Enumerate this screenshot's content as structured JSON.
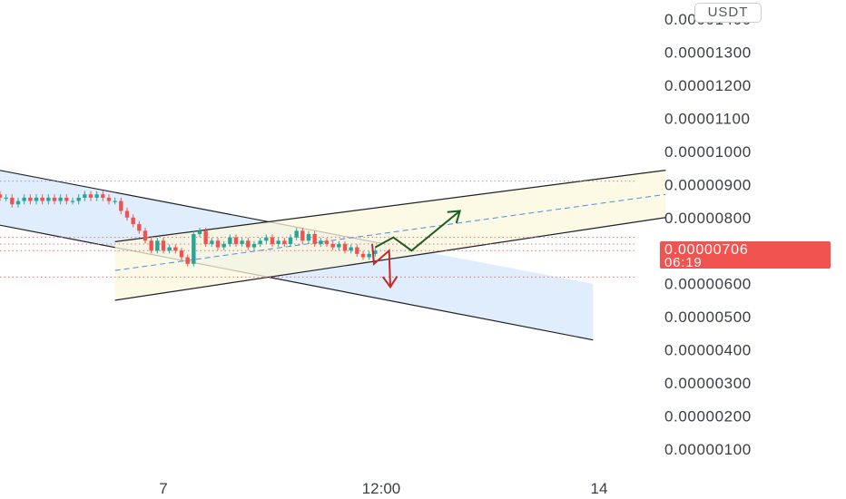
{
  "currency_badge": "USDT",
  "price_label": {
    "price": "0.00000706",
    "countdown": "06:19",
    "color": "#f05350"
  },
  "colors": {
    "up": "#26a69a",
    "down": "#ef5350",
    "channel_down_fill": "#dbeafb",
    "channel_up_fill": "#fbf7dc",
    "midline": "#4a90e2",
    "arrow_up": "#1b5e20",
    "arrow_down": "#c62828",
    "level_red": "#e57373",
    "level_grey": "#9e9e9e"
  },
  "chart_data": {
    "type": "candlestick",
    "title": "",
    "xlabel": "",
    "ylabel": "",
    "y_scale": "linear",
    "ylim": [
      1e-07,
      1.4e-05
    ],
    "y_ticks": [
      "0.00001400",
      "0.00001300",
      "0.00001200",
      "0.00001100",
      "0.00001000",
      "0.00000900",
      "0.00000800",
      "0.00000700",
      "0.00000600",
      "0.00000500",
      "0.00000400",
      "0.00000300",
      "0.00000200",
      "0.00000100"
    ],
    "y_tick_values": [
      1.4e-05,
      1.3e-05,
      1.2e-05,
      1.1e-05,
      1e-05,
      9e-06,
      8e-06,
      7e-06,
      6e-06,
      5e-06,
      4e-06,
      3e-06,
      2e-06,
      1e-06
    ],
    "hidden_y_ticks": [
      "0.00000700"
    ],
    "x_range_hours": [
      -42,
      83
    ],
    "x_ticks": [
      {
        "label": "7",
        "hours": 0
      },
      {
        "label": "12:00",
        "hours": 36
      },
      {
        "label": "14",
        "hours": 72
      }
    ],
    "last_price": 7.06e-06,
    "series": [
      {
        "name": "",
        "type": "candlestick",
        "hours": [
          -42,
          -41,
          -40,
          -39,
          -38,
          -37,
          -36,
          -35,
          -34,
          -33,
          -32,
          -31,
          -30,
          -29,
          -28,
          -27,
          -26,
          -25,
          -24,
          -23,
          -22,
          -21,
          -20,
          -19,
          -18,
          -17,
          -16,
          -15,
          -14,
          -13,
          -12,
          -11,
          -10,
          -9,
          -8,
          -7,
          -6,
          -5,
          -4,
          -3,
          -2,
          -1,
          0,
          1,
          2,
          3,
          4,
          5,
          6,
          7,
          8,
          9,
          10,
          11,
          12,
          13,
          14,
          15,
          16,
          17,
          18,
          19,
          20,
          21,
          22,
          23,
          24,
          25,
          26,
          27,
          28,
          29,
          30,
          31,
          32,
          33,
          34,
          35
        ],
        "close": [
          8.9e-06,
          8.8e-06,
          8.9e-06,
          8.8e-06,
          8.9e-06,
          9e-06,
          8.9e-06,
          9e-06,
          8.9e-06,
          9e-06,
          9e-06,
          8.9e-06,
          8.7e-06,
          8.6e-06,
          8.7e-06,
          8.6e-06,
          8.6e-06,
          8.4e-06,
          8.5e-06,
          8.6e-06,
          8.5e-06,
          8.6e-06,
          8.5e-06,
          8.6e-06,
          8.5e-06,
          8.6e-06,
          8.5e-06,
          8.5e-06,
          8.6e-06,
          8.7e-06,
          8.6e-06,
          8.7e-06,
          8.6e-06,
          8.5e-06,
          8.5e-06,
          8.2e-06,
          8e-06,
          7.8e-06,
          7.6e-06,
          7.3e-06,
          7e-06,
          7.3e-06,
          7e-06,
          7.1e-06,
          7e-06,
          6.8e-06,
          6.6e-06,
          7.5e-06,
          7.6e-06,
          7.2e-06,
          7.3e-06,
          7.1e-06,
          7.2e-06,
          7.4e-06,
          7.2e-06,
          7.3e-06,
          7.1e-06,
          7.2e-06,
          7.3e-06,
          7.4e-06,
          7.2e-06,
          7.3e-06,
          7.2e-06,
          7.4e-06,
          7.6e-06,
          7.3e-06,
          7.5e-06,
          7.2e-06,
          7.3e-06,
          7.2e-06,
          7.1e-06,
          7.2e-06,
          7e-06,
          7.1e-06,
          6.9e-06,
          6.8e-06,
          6.9e-06,
          7e-06
        ]
      }
    ],
    "drawings": [
      {
        "name": "",
        "type": "descending-channel",
        "upper": [
          [
            -42,
            9.95e-06
          ],
          [
            36,
            7.22e-06
          ]
        ],
        "lower": [
          [
            -42,
            8.3e-06
          ],
          [
            71,
            4.3e-06
          ]
        ]
      },
      {
        "name": "",
        "type": "ascending-channel",
        "upper": [
          [
            -8,
            7.27e-06
          ],
          [
            83,
            9.43e-06
          ]
        ],
        "lower": [
          [
            -8,
            5.5e-06
          ],
          [
            83,
            8e-06
          ]
        ],
        "midline": [
          [
            -8,
            6.4e-06
          ],
          [
            83,
            8.7e-06
          ]
        ]
      },
      {
        "name": "",
        "type": "path-arrow",
        "points": [
          [
            35,
            7.1e-06
          ],
          [
            38,
            7.4e-06
          ],
          [
            41,
            7e-06
          ],
          [
            49,
            8.2e-06
          ]
        ]
      },
      {
        "name": "",
        "type": "path-arrow",
        "points": [
          [
            34.5,
            7.2e-06
          ],
          [
            34.8,
            6.6e-06
          ],
          [
            37.3,
            7e-06
          ],
          [
            37.5,
            5.9e-06
          ]
        ]
      }
    ],
    "levels": [
      {
        "value": 9.1e-06
      },
      {
        "value": 7.4e-06
      },
      {
        "value": 7.2e-06
      },
      {
        "value": 7e-06
      },
      {
        "value": 6.2e-06
      }
    ],
    "grid": false,
    "legend": "none"
  }
}
